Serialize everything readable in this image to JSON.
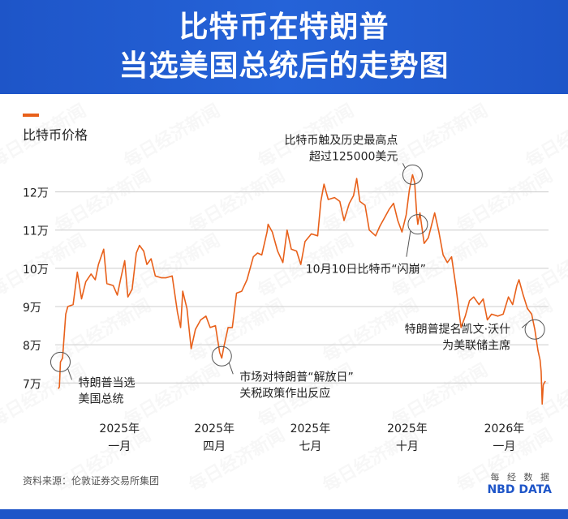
{
  "title_line1": "比特币在特朗普",
  "title_line2": "当选美国总统后的走势图",
  "series_label": "比特币价格",
  "source": "资料来源：伦敦证券交易所集团",
  "brand": {
    "cn": "每 经 数 据",
    "en": "NBD DATA"
  },
  "watermark": "每日经济新闻",
  "colors": {
    "header": "#1e55c8",
    "line": "#e8601a",
    "grid": "#cccccc",
    "callout": "#555555"
  },
  "chart_data": {
    "type": "line",
    "title": "比特币在特朗普当选美国总统后的走势图",
    "ylabel": "比特币价格",
    "ylim": [
      62000,
      132000
    ],
    "yticks": [
      {
        "value": 70000,
        "label": "7万"
      },
      {
        "value": 80000,
        "label": "8万"
      },
      {
        "value": 90000,
        "label": "9万"
      },
      {
        "value": 100000,
        "label": "10万"
      },
      {
        "value": 110000,
        "label": "11万"
      },
      {
        "value": 120000,
        "label": "12万"
      }
    ],
    "xlim": [
      "2024-11-01",
      "2026-02-12"
    ],
    "xticks": [
      {
        "date": "2025-01-01",
        "label1": "2025年",
        "label2": "一月"
      },
      {
        "date": "2025-04-01",
        "label1": "2025年",
        "label2": "四月"
      },
      {
        "date": "2025-07-01",
        "label1": "2025年",
        "label2": "七月"
      },
      {
        "date": "2025-10-01",
        "label1": "2025年",
        "label2": "十月"
      },
      {
        "date": "2026-01-01",
        "label1": "2026年",
        "label2": "一月"
      }
    ],
    "grid": true,
    "points": [
      [
        "2024-11-04",
        68500
      ],
      [
        "2024-11-05",
        69000
      ],
      [
        "2024-11-06",
        75500
      ],
      [
        "2024-11-08",
        76500
      ],
      [
        "2024-11-11",
        88000
      ],
      [
        "2024-11-13",
        90000
      ],
      [
        "2024-11-18",
        90500
      ],
      [
        "2024-11-22",
        99000
      ],
      [
        "2024-11-26",
        92000
      ],
      [
        "2024-11-30",
        96500
      ],
      [
        "2024-12-05",
        98500
      ],
      [
        "2024-12-09",
        97000
      ],
      [
        "2024-12-12",
        101000
      ],
      [
        "2024-12-17",
        105000
      ],
      [
        "2024-12-20",
        96000
      ],
      [
        "2024-12-26",
        95500
      ],
      [
        "2024-12-30",
        93000
      ],
      [
        "2025-01-02",
        97000
      ],
      [
        "2025-01-06",
        102000
      ],
      [
        "2025-01-09",
        92500
      ],
      [
        "2025-01-13",
        94500
      ],
      [
        "2025-01-17",
        104000
      ],
      [
        "2025-01-20",
        106000
      ],
      [
        "2025-01-24",
        104500
      ],
      [
        "2025-01-27",
        101000
      ],
      [
        "2025-01-31",
        102500
      ],
      [
        "2025-02-04",
        98000
      ],
      [
        "2025-02-10",
        97500
      ],
      [
        "2025-02-14",
        97500
      ],
      [
        "2025-02-20",
        98000
      ],
      [
        "2025-02-25",
        88500
      ],
      [
        "2025-02-28",
        84500
      ],
      [
        "2025-03-02",
        94000
      ],
      [
        "2025-03-06",
        89500
      ],
      [
        "2025-03-10",
        79000
      ],
      [
        "2025-03-14",
        84000
      ],
      [
        "2025-03-19",
        86500
      ],
      [
        "2025-03-24",
        87500
      ],
      [
        "2025-03-28",
        84500
      ],
      [
        "2025-04-02",
        85000
      ],
      [
        "2025-04-06",
        78000
      ],
      [
        "2025-04-08",
        76500
      ],
      [
        "2025-04-10",
        79500
      ],
      [
        "2025-04-14",
        84500
      ],
      [
        "2025-04-18",
        84500
      ],
      [
        "2025-04-22",
        93500
      ],
      [
        "2025-04-27",
        94000
      ],
      [
        "2025-05-02",
        97000
      ],
      [
        "2025-05-08",
        103000
      ],
      [
        "2025-05-12",
        104000
      ],
      [
        "2025-05-16",
        103500
      ],
      [
        "2025-05-21",
        109500
      ],
      [
        "2025-05-22",
        111500
      ],
      [
        "2025-05-26",
        109500
      ],
      [
        "2025-05-31",
        104500
      ],
      [
        "2025-06-05",
        101500
      ],
      [
        "2025-06-09",
        110000
      ],
      [
        "2025-06-13",
        105000
      ],
      [
        "2025-06-18",
        104500
      ],
      [
        "2025-06-22",
        101000
      ],
      [
        "2025-06-26",
        107000
      ],
      [
        "2025-07-02",
        109000
      ],
      [
        "2025-07-08",
        108500
      ],
      [
        "2025-07-11",
        117500
      ],
      [
        "2025-07-14",
        122000
      ],
      [
        "2025-07-18",
        118000
      ],
      [
        "2025-07-24",
        118500
      ],
      [
        "2025-07-29",
        117500
      ],
      [
        "2025-08-02",
        112500
      ],
      [
        "2025-08-07",
        117000
      ],
      [
        "2025-08-11",
        119000
      ],
      [
        "2025-08-14",
        123500
      ],
      [
        "2025-08-17",
        117500
      ],
      [
        "2025-08-22",
        116500
      ],
      [
        "2025-08-26",
        110000
      ],
      [
        "2025-09-01",
        108500
      ],
      [
        "2025-09-05",
        111000
      ],
      [
        "2025-09-10",
        113500
      ],
      [
        "2025-09-14",
        115500
      ],
      [
        "2025-09-18",
        117000
      ],
      [
        "2025-09-22",
        112500
      ],
      [
        "2025-09-26",
        109500
      ],
      [
        "2025-09-30",
        114000
      ],
      [
        "2025-10-03",
        120500
      ],
      [
        "2025-10-06",
        124500
      ],
      [
        "2025-10-08",
        122500
      ],
      [
        "2025-10-10",
        114000
      ],
      [
        "2025-10-11",
        111500
      ],
      [
        "2025-10-13",
        114500
      ],
      [
        "2025-10-17",
        106500
      ],
      [
        "2025-10-21",
        108000
      ],
      [
        "2025-10-27",
        114500
      ],
      [
        "2025-10-31",
        109500
      ],
      [
        "2025-11-04",
        103500
      ],
      [
        "2025-11-08",
        101500
      ],
      [
        "2025-11-12",
        103000
      ],
      [
        "2025-11-16",
        95500
      ],
      [
        "2025-11-21",
        84500
      ],
      [
        "2025-11-25",
        87500
      ],
      [
        "2025-11-29",
        91500
      ],
      [
        "2025-12-03",
        92500
      ],
      [
        "2025-12-08",
        90500
      ],
      [
        "2025-12-12",
        92000
      ],
      [
        "2025-12-16",
        86500
      ],
      [
        "2025-12-20",
        88000
      ],
      [
        "2025-12-26",
        87500
      ],
      [
        "2025-12-31",
        88000
      ],
      [
        "2026-01-05",
        92500
      ],
      [
        "2026-01-09",
        90500
      ],
      [
        "2026-01-13",
        95500
      ],
      [
        "2026-01-15",
        97000
      ],
      [
        "2026-01-19",
        93000
      ],
      [
        "2026-01-23",
        89500
      ],
      [
        "2026-01-27",
        88000
      ],
      [
        "2026-01-30",
        84000
      ],
      [
        "2026-02-02",
        78500
      ],
      [
        "2026-02-04",
        76000
      ],
      [
        "2026-02-05",
        73000
      ],
      [
        "2026-02-06",
        64500
      ],
      [
        "2026-02-07",
        69500
      ],
      [
        "2026-02-09",
        70500
      ]
    ],
    "annotations": [
      {
        "date": "2024-11-06",
        "value": 75500,
        "text": [
          "特朗普当选",
          "美国总统"
        ],
        "pos": "below-right"
      },
      {
        "date": "2025-04-08",
        "value": 77000,
        "text": [
          "市场对特朗普“解放日”",
          "关税政策作出反应"
        ],
        "pos": "below-right"
      },
      {
        "date": "2025-10-06",
        "value": 124500,
        "text": [
          "比特币触及历史最高点",
          "超过125000美元"
        ],
        "pos": "above-left"
      },
      {
        "date": "2025-10-11",
        "value": 111500,
        "text": [
          "10月10日比特币“闪崩”"
        ],
        "pos": "below-left"
      },
      {
        "date": "2026-01-30",
        "value": 84000,
        "text": [
          "特朗普提名凯文·沃什",
          "为美联储主席"
        ],
        "pos": "left"
      }
    ]
  }
}
